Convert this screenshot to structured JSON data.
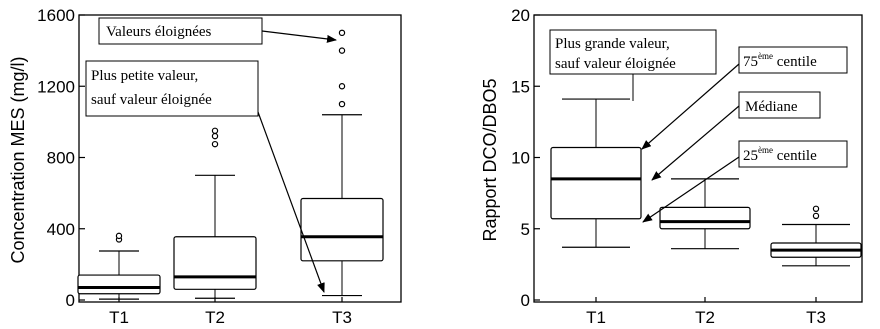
{
  "chart_data": [
    {
      "type": "box",
      "ylabel": "Concentration MES (mg/l)",
      "ylim": [
        0,
        1600
      ],
      "yticks": [
        0,
        400,
        800,
        1200,
        1600
      ],
      "categories": [
        "T1",
        "T2",
        "T3"
      ],
      "boxes": [
        {
          "min": 5,
          "q1": 35,
          "median": 70,
          "q3": 140,
          "max": 275,
          "outliers": [
            340,
            360
          ]
        },
        {
          "min": 10,
          "q1": 60,
          "median": 130,
          "q3": 355,
          "max": 700,
          "outliers": [
            875,
            920,
            950
          ]
        },
        {
          "min": 25,
          "q1": 220,
          "median": 355,
          "q3": 570,
          "max": 1040,
          "outliers": [
            1100,
            1200,
            1400,
            1500
          ]
        }
      ],
      "annotations": [
        {
          "text": "Valeurs éloignées"
        },
        {
          "text": "Plus petite valeur,",
          "text2": "sauf valeur éloignée"
        }
      ]
    },
    {
      "type": "box",
      "ylabel": "Rapport DCO/DBO5",
      "ylim": [
        0,
        20
      ],
      "yticks": [
        0,
        5,
        10,
        15,
        20
      ],
      "categories": [
        "T1",
        "T2",
        "T3"
      ],
      "boxes": [
        {
          "min": 3.7,
          "q1": 5.7,
          "median": 8.5,
          "q3": 10.7,
          "max": 14.1,
          "outliers": []
        },
        {
          "min": 3.6,
          "q1": 5.0,
          "median": 5.5,
          "q3": 6.5,
          "max": 8.5,
          "outliers": []
        },
        {
          "min": 2.4,
          "q1": 3.0,
          "median": 3.5,
          "q3": 4.0,
          "max": 5.3,
          "outliers": [
            5.9,
            6.4
          ]
        }
      ],
      "annotations": [
        {
          "text": "Plus grande valeur,",
          "text2": "sauf valeur éloignée"
        },
        {
          "text": "75",
          "sup": "ème",
          "tail": " centile"
        },
        {
          "text": "Médiane"
        },
        {
          "text": "25",
          "sup": "ème",
          "tail": " centile"
        }
      ]
    }
  ]
}
